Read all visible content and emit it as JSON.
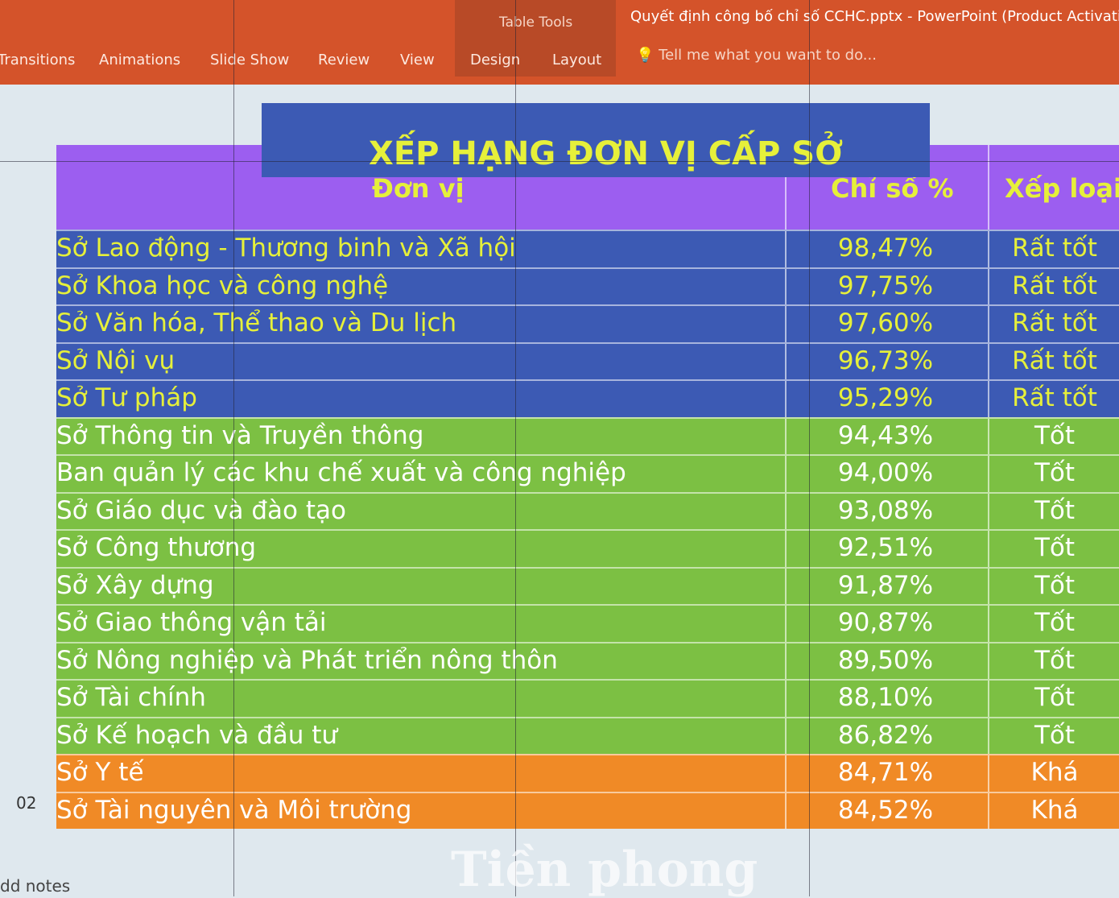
{
  "ribbon": {
    "tabs": [
      "Transitions",
      "Animations",
      "Slide Show",
      "Review",
      "View",
      "Design",
      "Layout"
    ],
    "context_group": "Table Tools",
    "window_title": "Quyết định công bố chỉ số CCHC.pptx - PowerPoint (Product Activatio",
    "tell_me": "Tell me what you want to do..."
  },
  "slide": {
    "title": "XẾP HẠNG ĐƠN VỊ CẤP SỞ",
    "headers": [
      "Đơn vị",
      "Chỉ số %",
      "Xếp loại"
    ],
    "rows": [
      {
        "unit": "Sở Lao động - Thương binh và Xã hội",
        "score": "98,47%",
        "rank": "Rất tốt",
        "group": "blue"
      },
      {
        "unit": "Sở Khoa học và công nghệ",
        "score": "97,75%",
        "rank": "Rất tốt",
        "group": "blue"
      },
      {
        "unit": "Sở Văn hóa, Thể thao và Du lịch",
        "score": "97,60%",
        "rank": "Rất tốt",
        "group": "blue"
      },
      {
        "unit": "Sở Nội vụ",
        "score": "96,73%",
        "rank": "Rất tốt",
        "group": "blue"
      },
      {
        "unit": "Sở Tư pháp",
        "score": "95,29%",
        "rank": "Rất tốt",
        "group": "blue"
      },
      {
        "unit": "Sở Thông tin và Truyền thông",
        "score": "94,43%",
        "rank": "Tốt",
        "group": "green"
      },
      {
        "unit": "Ban quản lý các khu chế xuất và công nghiệp",
        "score": "94,00%",
        "rank": "Tốt",
        "group": "green"
      },
      {
        "unit": "Sở Giáo dục và đào tạo",
        "score": "93,08%",
        "rank": "Tốt",
        "group": "green"
      },
      {
        "unit": "Sở Công thương",
        "score": "92,51%",
        "rank": "Tốt",
        "group": "green"
      },
      {
        "unit": "Sở Xây dựng",
        "score": "91,87%",
        "rank": "Tốt",
        "group": "green"
      },
      {
        "unit": "Sở Giao thông vận tải",
        "score": "90,87%",
        "rank": "Tốt",
        "group": "green"
      },
      {
        "unit": "Sở Nông nghiệp và Phát triển nông thôn",
        "score": "89,50%",
        "rank": "Tốt",
        "group": "green"
      },
      {
        "unit": "Sở Tài chính",
        "score": "88,10%",
        "rank": "Tốt",
        "group": "green"
      },
      {
        "unit": "Sở Kế hoạch và đầu tư",
        "score": "86,82%",
        "rank": "Tốt",
        "group": "green"
      },
      {
        "unit": "Sở Y tế",
        "score": "84,71%",
        "rank": "Khá",
        "group": "orange"
      },
      {
        "unit": "Sở Tài nguyên và Môi trường",
        "score": "84,52%",
        "rank": "Khá",
        "group": "orange"
      }
    ],
    "slide_number": "02"
  },
  "notes_label": "dd notes",
  "watermark": "Tiền phong",
  "colors": {
    "ribbon": "#d4532a",
    "header": "#9c5ef0",
    "blue": "#3c5ab4",
    "green": "#7cc043",
    "orange": "#f08a26",
    "text_yellow": "#e6f03a"
  }
}
